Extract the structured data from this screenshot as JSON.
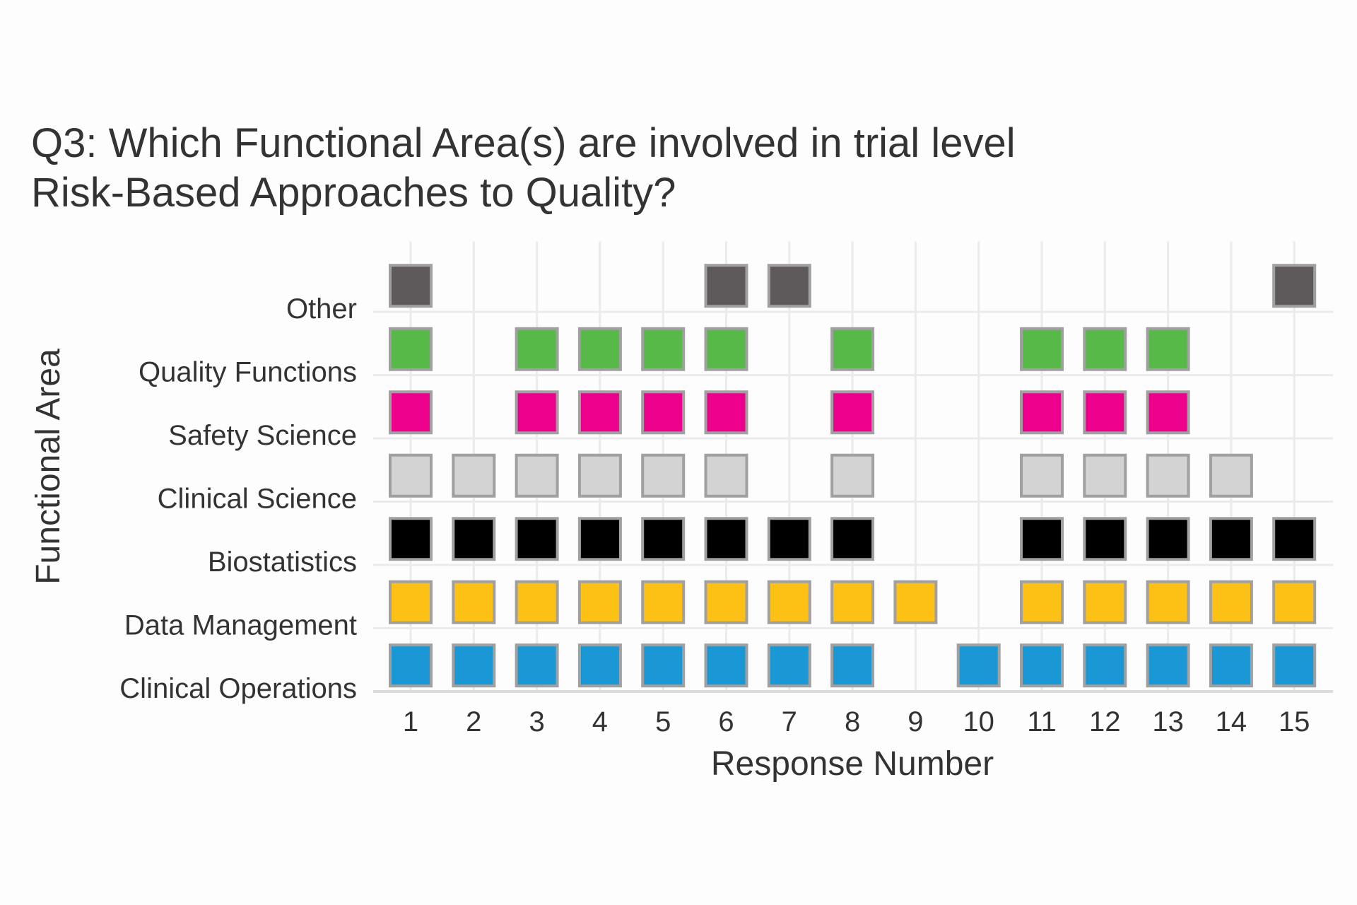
{
  "chart_data": {
    "type": "heatmap",
    "title_lines": [
      "Q3: Which Functional Area(s) are involved in trial level",
      "Risk-Based Approaches to Quality?"
    ],
    "xlabel": "Response Number",
    "ylabel": "Functional Area",
    "x_categories": [
      "1",
      "2",
      "3",
      "4",
      "5",
      "6",
      "7",
      "8",
      "9",
      "10",
      "11",
      "12",
      "13",
      "14",
      "15"
    ],
    "y_categories": [
      "Clinical Operations",
      "Data Management",
      "Biostatistics",
      "Clinical Science",
      "Safety Science",
      "Quality Functions",
      "Other"
    ],
    "colors": {
      "Clinical Operations": "#1a98d5",
      "Data Management": "#fdc115",
      "Biostatistics": "#000000",
      "Clinical Science": "#d3d3d3",
      "Safety Science": "#ec008c",
      "Quality Functions": "#57b947",
      "Other": "#5e5a5b"
    },
    "border_color": "#a0a0a0",
    "grid": true,
    "legend": "none",
    "responses": {
      "Clinical Operations": [
        1,
        2,
        3,
        4,
        5,
        6,
        7,
        8,
        10,
        11,
        12,
        13,
        14,
        15
      ],
      "Data Management": [
        1,
        2,
        3,
        4,
        5,
        6,
        7,
        8,
        9,
        11,
        12,
        13,
        14,
        15
      ],
      "Biostatistics": [
        1,
        2,
        3,
        4,
        5,
        6,
        7,
        8,
        11,
        12,
        13,
        14,
        15
      ],
      "Clinical Science": [
        1,
        2,
        3,
        4,
        5,
        6,
        8,
        11,
        12,
        13,
        14
      ],
      "Safety Science": [
        1,
        3,
        4,
        5,
        6,
        8,
        11,
        12,
        13
      ],
      "Quality Functions": [
        1,
        3,
        4,
        5,
        6,
        8,
        11,
        12,
        13
      ],
      "Other": [
        1,
        6,
        7,
        15
      ]
    }
  }
}
